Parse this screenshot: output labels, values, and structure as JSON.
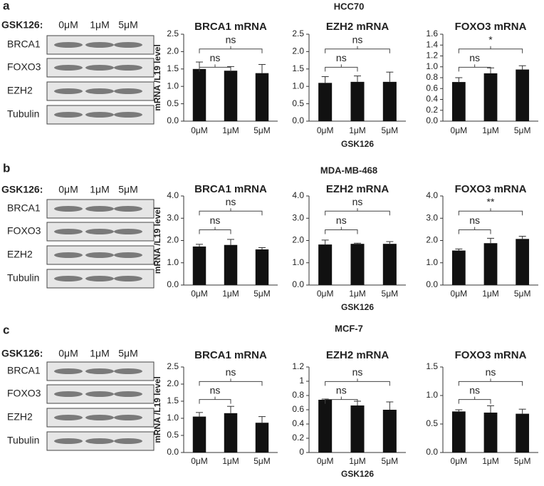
{
  "panels": [
    {
      "letter": "a",
      "title": "HCC70",
      "treatment_label": "GSK126:",
      "lanes": [
        "0μM",
        "1μM",
        "5μM"
      ],
      "blots": [
        "BRCA1",
        "FOXO3",
        "EZH2",
        "Tubulin"
      ]
    },
    {
      "letter": "b",
      "title": "MDA-MB-468",
      "treatment_label": "GSK126:",
      "lanes": [
        "0μM",
        "1μM",
        "5μM"
      ],
      "blots": [
        "BRCA1",
        "FOXO3",
        "EZH2",
        "Tubulin"
      ]
    },
    {
      "letter": "c",
      "title": "MCF-7",
      "treatment_label": "GSK126:",
      "lanes": [
        "0μM",
        "1μM",
        "5μM"
      ],
      "blots": [
        "BRCA1",
        "FOXO3",
        "EZH2",
        "Tubulin"
      ]
    }
  ],
  "chart_data": [
    {
      "type": "bar",
      "title": "BRCA1 mRNA",
      "ylabel": "mRNA /L19 level",
      "categories": [
        "0μM",
        "1μM",
        "5μM"
      ],
      "values": [
        1.5,
        1.45,
        1.38
      ],
      "errors": [
        0.2,
        0.12,
        0.25
      ],
      "color": "#111111",
      "ylim": [
        0,
        2.5
      ],
      "yticks": [
        {
          "value": 0,
          "label": "0.0"
        },
        0.5,
        {
          "value": 1,
          "label": "1.0"
        },
        1.5,
        {
          "value": 2,
          "label": "2.0"
        },
        2.5
      ],
      "annotations": [
        {
          "label": "ns",
          "groups": [
            "0μM",
            "1μM"
          ]
        },
        {
          "label": "ns",
          "groups": [
            "0μM",
            "5μM"
          ]
        }
      ]
    },
    {
      "type": "bar",
      "title": "EZH2 mRNA",
      "xlabel": "GSK126",
      "categories": [
        "0μM",
        "1μM",
        "5μM"
      ],
      "values": [
        1.1,
        1.13,
        1.13
      ],
      "errors": [
        0.18,
        0.17,
        0.28
      ],
      "color": "#111111",
      "ylim": [
        0,
        2.5
      ],
      "yticks": [
        {
          "value": 0,
          "label": "0.0"
        },
        0.5,
        {
          "value": 1,
          "label": "1.0"
        },
        1.5,
        {
          "value": 2,
          "label": "2.0"
        },
        2.5
      ],
      "annotations": [
        {
          "label": "ns",
          "groups": [
            "0μM",
            "1μM"
          ]
        },
        {
          "label": "ns",
          "groups": [
            "0μM",
            "5μM"
          ]
        }
      ]
    },
    {
      "type": "bar",
      "title": "FOXO3 mRNA",
      "categories": [
        "0μM",
        "1μM",
        "5μM"
      ],
      "values": [
        0.72,
        0.88,
        0.95
      ],
      "errors": [
        0.08,
        0.1,
        0.07
      ],
      "color": "#111111",
      "ylim": [
        0,
        1.6
      ],
      "yticks": [
        {
          "value": 0,
          "label": "0.0"
        },
        0.2,
        0.4,
        0.6,
        0.8,
        {
          "value": 1,
          "label": "1.0"
        },
        1.2,
        1.4,
        1.6
      ],
      "annotations": [
        {
          "label": "ns",
          "groups": [
            "0μM",
            "1μM"
          ]
        },
        {
          "label": "*",
          "groups": [
            "0μM",
            "5μM"
          ]
        }
      ]
    },
    {
      "type": "bar",
      "title": "BRCA1 mRNA",
      "ylabel": "mRNA /L19 level",
      "categories": [
        "0μM",
        "1μM",
        "5μM"
      ],
      "values": [
        1.73,
        1.8,
        1.6
      ],
      "errors": [
        0.1,
        0.25,
        0.08
      ],
      "color": "#111111",
      "ylim": [
        0,
        4
      ],
      "yticks": [
        {
          "value": 0,
          "label": "0.0"
        },
        {
          "value": 1,
          "label": "1.0"
        },
        {
          "value": 2,
          "label": "2.0"
        },
        {
          "value": 3,
          "label": "3.0"
        },
        {
          "value": 4,
          "label": "4.0"
        }
      ],
      "annotations": [
        {
          "label": "ns",
          "groups": [
            "0μM",
            "1μM"
          ]
        },
        {
          "label": "ns",
          "groups": [
            "0μM",
            "5μM"
          ]
        }
      ]
    },
    {
      "type": "bar",
      "title": "EZH2 mRNA",
      "xlabel": "GSK126",
      "categories": [
        "0μM",
        "1μM",
        "5μM"
      ],
      "values": [
        1.82,
        1.85,
        1.85
      ],
      "errors": [
        0.2,
        0.03,
        0.1
      ],
      "color": "#111111",
      "ylim": [
        0,
        4
      ],
      "yticks": [
        {
          "value": 0,
          "label": "0.0"
        },
        {
          "value": 1,
          "label": "1.0"
        },
        {
          "value": 2,
          "label": "2.0"
        },
        {
          "value": 3,
          "label": "3.0"
        },
        {
          "value": 4,
          "label": "4.0"
        }
      ],
      "annotations": [
        {
          "label": "ns",
          "groups": [
            "0μM",
            "1μM"
          ]
        },
        {
          "label": "ns",
          "groups": [
            "0μM",
            "5μM"
          ]
        }
      ]
    },
    {
      "type": "bar",
      "title": "FOXO3 mRNA",
      "categories": [
        "0μM",
        "1μM",
        "5μM"
      ],
      "values": [
        1.55,
        1.88,
        2.07
      ],
      "errors": [
        0.07,
        0.22,
        0.12
      ],
      "color": "#111111",
      "ylim": [
        0,
        4
      ],
      "yticks": [
        {
          "value": 0,
          "label": "0.0"
        },
        {
          "value": 1,
          "label": "1.0"
        },
        {
          "value": 2,
          "label": "2.0"
        },
        {
          "value": 3,
          "label": "3.0"
        },
        {
          "value": 4,
          "label": "4.0"
        }
      ],
      "annotations": [
        {
          "label": "ns",
          "groups": [
            "0μM",
            "1μM"
          ]
        },
        {
          "label": "**",
          "groups": [
            "0μM",
            "5μM"
          ]
        }
      ]
    },
    {
      "type": "bar",
      "title": "BRCA1 mRNA",
      "ylabel": "mRNA /L19 level",
      "categories": [
        "0μM",
        "1μM",
        "5μM"
      ],
      "values": [
        1.05,
        1.15,
        0.87
      ],
      "errors": [
        0.12,
        0.2,
        0.18
      ],
      "color": "#111111",
      "ylim": [
        0,
        2.5
      ],
      "yticks": [
        {
          "value": 0,
          "label": "0.0"
        },
        0.5,
        {
          "value": 1,
          "label": "1.0"
        },
        1.5,
        {
          "value": 2,
          "label": "2.0"
        },
        2.5
      ],
      "annotations": [
        {
          "label": "ns",
          "groups": [
            "0μM",
            "1μM"
          ]
        },
        {
          "label": "ns",
          "groups": [
            "0μM",
            "5μM"
          ]
        }
      ]
    },
    {
      "type": "bar",
      "title": "EZH2 mRNA",
      "xlabel": "GSK126",
      "categories": [
        "0μM",
        "1μM",
        "5μM"
      ],
      "values": [
        0.74,
        0.66,
        0.6
      ],
      "errors": [
        0.01,
        0.06,
        0.11
      ],
      "color": "#111111",
      "ylim": [
        0,
        1.2
      ],
      "yticks": [
        0,
        0.2,
        0.4,
        0.6,
        0.8,
        1,
        1.2
      ],
      "annotations": [
        {
          "label": "ns",
          "groups": [
            "0μM",
            "1μM"
          ]
        },
        {
          "label": "ns",
          "groups": [
            "0μM",
            "5μM"
          ]
        }
      ]
    },
    {
      "type": "bar",
      "title": "FOXO3 mRNA",
      "categories": [
        "0μM",
        "1μM",
        "5μM"
      ],
      "values": [
        0.72,
        0.7,
        0.68
      ],
      "errors": [
        0.03,
        0.12,
        0.08
      ],
      "color": "#111111",
      "ylim": [
        0,
        1.5
      ],
      "yticks": [
        {
          "value": 0,
          "label": "0.0"
        },
        0.5,
        {
          "value": 1,
          "label": "1.0"
        },
        1.5
      ],
      "annotations": [
        {
          "label": "ns",
          "groups": [
            "0μM",
            "1μM"
          ]
        },
        {
          "label": "ns",
          "groups": [
            "0μM",
            "5μM"
          ]
        }
      ]
    }
  ]
}
